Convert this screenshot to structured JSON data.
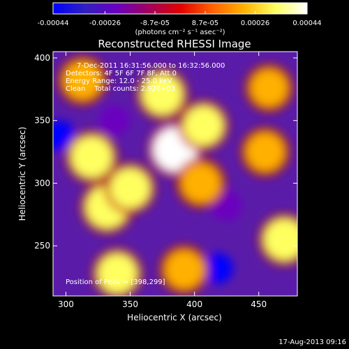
{
  "colorbar": {
    "ticks": [
      "-0.00044",
      "-0.00026",
      "-8.7e-05",
      "8.7e-05",
      "0.00026",
      "0.00044"
    ],
    "unit_label": "(photons cm⁻² s⁻¹ asec⁻²)",
    "range": [
      -0.00044,
      0.00044
    ],
    "colors": [
      "#0000ff",
      "#3020c0",
      "#6a00c0",
      "#a00060",
      "#e00000",
      "#ff6000",
      "#ffb000",
      "#ffff60",
      "#ffffff"
    ]
  },
  "chart_data": {
    "type": "heatmap",
    "title": "Reconstructed RHESSI Image",
    "xlabel": "Heliocentric X (arcsec)",
    "ylabel": "Heliocentric Y (arcsec)",
    "xlim": [
      290,
      480
    ],
    "ylim": [
      210,
      405
    ],
    "xticks": [
      300,
      350,
      400,
      450
    ],
    "yticks": [
      250,
      300,
      350,
      400
    ],
    "annotations": [
      "7-Dec-2011 16:31:56.000 to 16:32:56.000",
      "Detectors: 4F 5F 6F 7F 8F, Att 0",
      "Energy Range: 12.0 - 25.0 keV",
      "Clean    Total counts: 2.92E+03"
    ],
    "peak_label": "Position of Peak = [398,299]",
    "peak": [
      398,
      299
    ],
    "hot_spots": [
      {
        "x": 385,
        "y": 327,
        "value": 0.00044
      },
      {
        "x": 320,
        "y": 321,
        "value": 0.00035
      },
      {
        "x": 332,
        "y": 281,
        "value": 0.00038
      },
      {
        "x": 375,
        "y": 371,
        "value": 0.00032
      },
      {
        "x": 350,
        "y": 296,
        "value": 0.0003
      },
      {
        "x": 407,
        "y": 346,
        "value": 0.00028
      },
      {
        "x": 405,
        "y": 300,
        "value": 0.00026
      },
      {
        "x": 470,
        "y": 255,
        "value": 0.00034
      },
      {
        "x": 455,
        "y": 325,
        "value": 0.00024
      },
      {
        "x": 392,
        "y": 231,
        "value": 0.00025
      },
      {
        "x": 313,
        "y": 382,
        "value": 0.00024
      },
      {
        "x": 340,
        "y": 228,
        "value": 0.00028
      },
      {
        "x": 458,
        "y": 376,
        "value": 0.0002
      }
    ],
    "cold_spots": [
      {
        "x": 418,
        "y": 232,
        "value": -0.00044
      },
      {
        "x": 295,
        "y": 338,
        "value": -0.00044
      },
      {
        "x": 338,
        "y": 350,
        "value": -0.0002
      },
      {
        "x": 425,
        "y": 282,
        "value": -0.00018
      }
    ]
  },
  "footer": {
    "timestamp": "17-Aug-2013 09:16"
  }
}
